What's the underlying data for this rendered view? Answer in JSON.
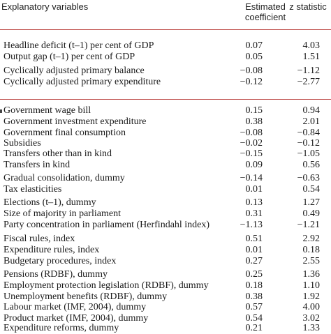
{
  "header": {
    "variables": "Explanatory variables",
    "coefficient_line1": "Estimated",
    "coefficient_line2": "coefficient",
    "z_statistic": "z statistic"
  },
  "rows": [
    {
      "label": "Headline deficit (t–1) per cent of GDP",
      "coef": "0.07",
      "z": "4.03"
    },
    {
      "label": "Output gap (t–1) per cent of GDP",
      "coef": "0.05",
      "z": "1.51"
    },
    {
      "label": "Cyclically adjusted primary balance",
      "coef": "−0.08",
      "z": "−1.12"
    },
    {
      "label": "Cyclically adjusted primary expenditure",
      "coef": "−0.12",
      "z": "−2.77"
    },
    {
      "label": "Government wage bill",
      "coef": "0.15",
      "z": "0.94"
    },
    {
      "label": "Government investment expenditure",
      "coef": "0.38",
      "z": "2.01"
    },
    {
      "label": "Government final consumption",
      "coef": "−0.08",
      "z": "−0.84"
    },
    {
      "label": "Subsidies",
      "coef": "−0.02",
      "z": "−0.12"
    },
    {
      "label": "Transfers other than in kind",
      "coef": "−0.15",
      "z": "−1.05"
    },
    {
      "label": "Transfers in kind",
      "coef": "0.09",
      "z": "0.56"
    },
    {
      "label": "Gradual consolidation, dummy",
      "coef": "−0.14",
      "z": "−0.63"
    },
    {
      "label": "Tax elasticities",
      "coef": "0.01",
      "z": "0.54"
    },
    {
      "label": "Elections (t–1), dummy",
      "coef": "0.13",
      "z": "1.27"
    },
    {
      "label": "Size of majority in parliament",
      "coef": "0.31",
      "z": "0.49"
    },
    {
      "label": "Party concentration in parliament (Herfindahl index)",
      "coef": "−1.13",
      "z": "−1.21"
    },
    {
      "label": "Fiscal rules, index",
      "coef": "0.51",
      "z": "2.92"
    },
    {
      "label": "Expenditure rules, index",
      "coef": "0.01",
      "z": "0.18"
    },
    {
      "label": "Budgetary procedures, index",
      "coef": "0.27",
      "z": "2.55"
    },
    {
      "label": "Pensions (RDBF), dummy",
      "coef": "0.25",
      "z": "1.36"
    },
    {
      "label": "Employment protection legislation (RDBF), dummy",
      "coef": "0.18",
      "z": "1.10"
    },
    {
      "label": "Unemployment benefits (RDBF), dummy",
      "coef": "0.38",
      "z": "1.92"
    },
    {
      "label": "Labour market (IMF, 2004), dummy",
      "coef": "0.57",
      "z": "4.00"
    },
    {
      "label": "Product market (IMF, 2004), dummy",
      "coef": "0.54",
      "z": "3.02"
    },
    {
      "label": "Expenditure reforms, dummy",
      "coef": "0.21",
      "z": "1.33"
    }
  ]
}
